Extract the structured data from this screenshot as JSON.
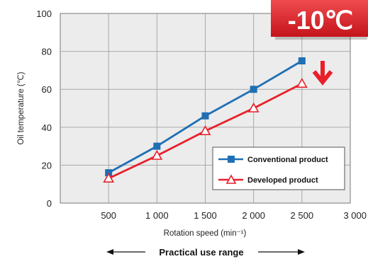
{
  "chart_data": {
    "type": "line",
    "x": [
      500,
      1000,
      1500,
      2000,
      2500
    ],
    "xlim": [
      0,
      3000
    ],
    "x_ticks": [
      "500",
      "1 000",
      "1 500",
      "2 000",
      "2 500",
      "3 000"
    ],
    "x_tick_values": [
      500,
      1000,
      1500,
      2000,
      2500,
      3000
    ],
    "ylim": [
      0,
      100
    ],
    "y_ticks": [
      "0",
      "20",
      "40",
      "60",
      "80",
      "100"
    ],
    "y_tick_values": [
      0,
      20,
      40,
      60,
      80,
      100
    ],
    "xlabel": "Rotation speed (min⁻¹)",
    "ylabel": "Oil temperature (℃)",
    "grid": true,
    "legend_position": "bottom-right",
    "series": [
      {
        "name": "Conventional product",
        "values": [
          16,
          30,
          46,
          60,
          75
        ],
        "color": "#1f6fb5",
        "marker": "filled-square"
      },
      {
        "name": "Developed product",
        "values": [
          13,
          25,
          38,
          50,
          63
        ],
        "color": "#e8202a",
        "marker": "open-triangle"
      }
    ],
    "annotations": {
      "badge": "-10℃",
      "badge_color": "#e8202a",
      "down_arrow_color": "#e8202a",
      "range_label": "Practical use range"
    }
  }
}
